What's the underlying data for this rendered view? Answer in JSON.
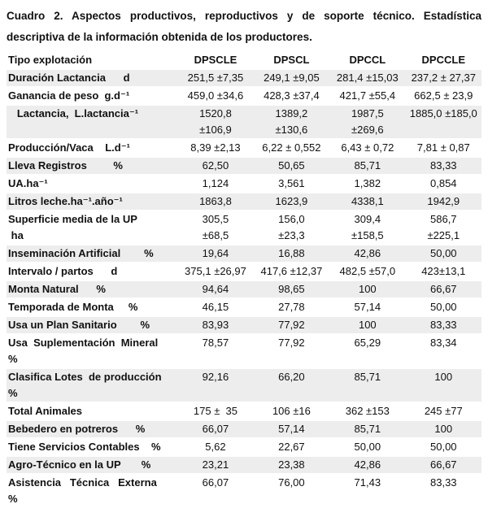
{
  "title": "Cuadro 2. Aspectos productivos, reproductivos y de soporte técnico. Estadística descriptiva de la información obtenida de los productores.",
  "table": {
    "header": {
      "label": "Tipo explotación",
      "columns": [
        "DPSCLE",
        "DPSCL",
        "DPCCL",
        "DPCCLE"
      ]
    },
    "rows": [
      {
        "label": "Duración Lactancia      d",
        "values": [
          "251,5 ±7,35",
          "249,1 ±9,05",
          "281,4 ±15,03",
          "237,2 ± 27,37"
        ],
        "shaded": true
      },
      {
        "label": "Ganancia de peso  g.d⁻¹",
        "values": [
          "459,0 ±34,6",
          "428,3 ±37,4",
          "421,7 ±55,4",
          "662,5 ± 23,9"
        ],
        "shaded": false
      },
      {
        "label": "   Lactancia,  L.lactancia⁻¹",
        "values": [
          "1520,8\n±106,9",
          "1389,2\n±130,6",
          "1987,5\n±269,6",
          "1885,0 ±185,0"
        ],
        "shaded": true
      },
      {
        "label": "Producción/Vaca    L.d⁻¹",
        "values": [
          "8,39 ±2,13",
          "6,22 ± 0,552",
          "6,43 ± 0,72",
          "7,81 ± 0,87"
        ],
        "shaded": false
      },
      {
        "label": "Lleva Registros         %",
        "values": [
          "62,50",
          "50,65",
          "85,71",
          "83,33"
        ],
        "shaded": true
      },
      {
        "label": "UA.ha⁻¹",
        "values": [
          "1,124",
          "3,561",
          "1,382",
          "0,854"
        ],
        "shaded": false
      },
      {
        "label": "Litros leche.ha⁻¹.año⁻¹",
        "values": [
          "1863,8",
          "1623,9",
          "4338,1",
          "1942,9"
        ],
        "shaded": true
      },
      {
        "label": "Superficie media de la UP\n ha",
        "values": [
          "305,5\n±68,5",
          "156,0\n±23,3",
          "309,4\n±158,5",
          "586,7\n±225,1"
        ],
        "shaded": false
      },
      {
        "label": "Inseminación Artificial        %",
        "values": [
          "19,64",
          "16,88",
          "42,86",
          "50,00"
        ],
        "shaded": true
      },
      {
        "label": "Intervalo / partos      d",
        "values": [
          "375,1 ±26,97",
          "417,6 ±12,37",
          "482,5 ±57,0",
          "423±13,1"
        ],
        "shaded": false
      },
      {
        "label": "Monta Natural      %",
        "values": [
          "94,64",
          "98,65",
          "100",
          "66,67"
        ],
        "shaded": true
      },
      {
        "label": "Temporada de Monta     %",
        "values": [
          "46,15",
          "27,78",
          "57,14",
          "50,00"
        ],
        "shaded": false
      },
      {
        "label": "Usa un Plan Sanitario        %",
        "values": [
          "83,93",
          "77,92",
          "100",
          "83,33"
        ],
        "shaded": true
      },
      {
        "label": "Usa  Suplementación  Mineral\n%",
        "values": [
          "78,57",
          "77,92",
          "65,29",
          "83,34"
        ],
        "shaded": false
      },
      {
        "label": "Clasifica Lotes  de producción\n%",
        "values": [
          "92,16",
          "66,20",
          "85,71",
          "100"
        ],
        "shaded": true
      },
      {
        "label": "Total Animales",
        "values": [
          "175 ±  35",
          "106 ±16",
          "362 ±153",
          "245 ±77"
        ],
        "shaded": false
      },
      {
        "label": "Bebedero en potreros      %",
        "values": [
          "66,07",
          "57,14",
          "85,71",
          "100"
        ],
        "shaded": true
      },
      {
        "label": "Tiene Servicios Contables    %",
        "values": [
          "5,62",
          "22,67",
          "50,00",
          "50,00"
        ],
        "shaded": false
      },
      {
        "label": "Agro-Técnico en la UP       %",
        "values": [
          "23,21",
          "23,38",
          "42,86",
          "66,67"
        ],
        "shaded": true
      },
      {
        "label": "Asistencia   Técnica   Externa\n%",
        "values": [
          "66,07",
          "76,00",
          "71,43",
          "83,33"
        ],
        "shaded": false
      }
    ]
  },
  "colors": {
    "shaded_row": "#ededed",
    "text": "#111111",
    "background": "#ffffff"
  }
}
